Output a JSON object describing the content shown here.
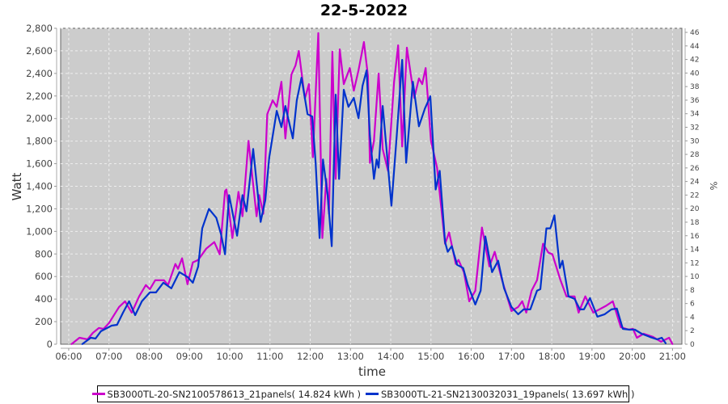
{
  "chart_data": {
    "type": "line",
    "title": "22-5-2022",
    "xlabel": "time",
    "ylabel": "Watt",
    "y2label": "%",
    "xlim": [
      "05:48",
      "21:14"
    ],
    "ylim": [
      0,
      2800
    ],
    "y2lim": [
      0,
      46.6
    ],
    "xticks": [
      "06:00",
      "07:00",
      "08:00",
      "09:00",
      "10:00",
      "11:00",
      "12:00",
      "13:00",
      "14:00",
      "15:00",
      "16:00",
      "17:00",
      "18:00",
      "19:00",
      "20:00",
      "21:00"
    ],
    "yticks": [
      "0",
      "200",
      "400",
      "600",
      "800",
      "1,000",
      "1,200",
      "1,400",
      "1,600",
      "1,800",
      "2,000",
      "2,200",
      "2,400",
      "2,600",
      "2,800"
    ],
    "y2ticks": [
      "0",
      "2",
      "4",
      "6",
      "8",
      "10",
      "12",
      "14",
      "16",
      "18",
      "20",
      "22",
      "24",
      "26",
      "28",
      "30",
      "32",
      "34",
      "36",
      "38",
      "40",
      "42",
      "44",
      "46"
    ],
    "grid": true,
    "legend_placement": "bottom",
    "background": "#cccccc",
    "series": [
      {
        "name": "SB3000TL-20-SN2100578613_21panels( 14.824 kWh )",
        "color": "#cc00cc",
        "points": [
          [
            "06:04",
            0
          ],
          [
            "06:16",
            57
          ],
          [
            "06:28",
            43
          ],
          [
            "06:36",
            100
          ],
          [
            "06:45",
            144
          ],
          [
            "06:52",
            136
          ],
          [
            "07:00",
            187
          ],
          [
            "07:15",
            330
          ],
          [
            "07:24",
            380
          ],
          [
            "07:34",
            280
          ],
          [
            "07:45",
            424
          ],
          [
            "07:55",
            524
          ],
          [
            "08:01",
            488
          ],
          [
            "08:09",
            567
          ],
          [
            "08:22",
            567
          ],
          [
            "08:28",
            524
          ],
          [
            "08:39",
            711
          ],
          [
            "08:43",
            668
          ],
          [
            "08:49",
            761
          ],
          [
            "08:57",
            531
          ],
          [
            "09:05",
            725
          ],
          [
            "09:13",
            747
          ],
          [
            "09:25",
            847
          ],
          [
            "09:37",
            905
          ],
          [
            "09:45",
            797
          ],
          [
            "09:53",
            1357
          ],
          [
            "09:55",
            1371
          ],
          [
            "10:04",
            941
          ],
          [
            "10:13",
            1350
          ],
          [
            "10:19",
            1134
          ],
          [
            "10:28",
            1802
          ],
          [
            "10:40",
            1134
          ],
          [
            "10:44",
            1321
          ],
          [
            "10:50",
            1156
          ],
          [
            "10:56",
            2039
          ],
          [
            "11:04",
            2161
          ],
          [
            "11:10",
            2104
          ],
          [
            "11:17",
            2326
          ],
          [
            "11:23",
            1824
          ],
          [
            "11:32",
            2391
          ],
          [
            "11:38",
            2470
          ],
          [
            "11:43",
            2599
          ],
          [
            "11:52",
            2176
          ],
          [
            "11:58",
            2305
          ],
          [
            "12:04",
            1658
          ],
          [
            "12:12",
            2757
          ],
          [
            "12:18",
            941
          ],
          [
            "12:24",
            1465
          ],
          [
            "12:28",
            1156
          ],
          [
            "12:33",
            2592
          ],
          [
            "12:36",
            1852
          ],
          [
            "12:38",
            1465
          ],
          [
            "12:44",
            2613
          ],
          [
            "12:50",
            2305
          ],
          [
            "12:59",
            2448
          ],
          [
            "13:05",
            2247
          ],
          [
            "13:12",
            2427
          ],
          [
            "13:20",
            2678
          ],
          [
            "13:26",
            2377
          ],
          [
            "13:29",
            1608
          ],
          [
            "13:35",
            1802
          ],
          [
            "13:42",
            2398
          ],
          [
            "13:48",
            1730
          ],
          [
            "13:56",
            1536
          ],
          [
            "14:05",
            2326
          ],
          [
            "14:11",
            2649
          ],
          [
            "14:17",
            1752
          ],
          [
            "14:24",
            2628
          ],
          [
            "14:35",
            2183
          ],
          [
            "14:42",
            2355
          ],
          [
            "14:47",
            2305
          ],
          [
            "14:52",
            2448
          ],
          [
            "15:00",
            1802
          ],
          [
            "15:09",
            1565
          ],
          [
            "15:21",
            890
          ],
          [
            "15:27",
            991
          ],
          [
            "15:37",
            711
          ],
          [
            "15:41",
            747
          ],
          [
            "15:49",
            639
          ],
          [
            "15:57",
            380
          ],
          [
            "16:06",
            474
          ],
          [
            "16:16",
            1034
          ],
          [
            "16:27",
            689
          ],
          [
            "16:35",
            819
          ],
          [
            "16:46",
            567
          ],
          [
            "17:00",
            294
          ],
          [
            "17:10",
            330
          ],
          [
            "17:16",
            380
          ],
          [
            "17:22",
            280
          ],
          [
            "17:30",
            474
          ],
          [
            "17:38",
            567
          ],
          [
            "17:47",
            890
          ],
          [
            "17:55",
            811
          ],
          [
            "18:01",
            797
          ],
          [
            "18:13",
            567
          ],
          [
            "18:22",
            424
          ],
          [
            "18:34",
            424
          ],
          [
            "18:40",
            280
          ],
          [
            "18:50",
            424
          ],
          [
            "19:02",
            280
          ],
          [
            "19:20",
            337
          ],
          [
            "19:31",
            380
          ],
          [
            "19:43",
            151
          ],
          [
            "19:55",
            129
          ],
          [
            "20:01",
            136
          ],
          [
            "20:07",
            57
          ],
          [
            "20:17",
            93
          ],
          [
            "20:31",
            65
          ],
          [
            "20:43",
            22
          ],
          [
            "20:55",
            57
          ],
          [
            "21:00",
            0
          ]
        ]
      },
      {
        "name": "SB3000TL-21-SN2130032031_19panels( 13.697 kWh )",
        "color": "#0033cc",
        "points": [
          [
            "06:20",
            0
          ],
          [
            "06:33",
            57
          ],
          [
            "06:40",
            50
          ],
          [
            "06:48",
            115
          ],
          [
            "07:04",
            165
          ],
          [
            "07:12",
            172
          ],
          [
            "07:21",
            280
          ],
          [
            "07:30",
            380
          ],
          [
            "07:39",
            258
          ],
          [
            "07:49",
            380
          ],
          [
            "08:01",
            459
          ],
          [
            "08:10",
            459
          ],
          [
            "08:21",
            545
          ],
          [
            "08:33",
            495
          ],
          [
            "08:45",
            639
          ],
          [
            "08:57",
            596
          ],
          [
            "09:05",
            545
          ],
          [
            "09:13",
            689
          ],
          [
            "09:19",
            1027
          ],
          [
            "09:29",
            1199
          ],
          [
            "09:40",
            1120
          ],
          [
            "09:47",
            976
          ],
          [
            "09:53",
            797
          ],
          [
            "09:59",
            1321
          ],
          [
            "10:11",
            962
          ],
          [
            "10:19",
            1321
          ],
          [
            "10:25",
            1178
          ],
          [
            "10:35",
            1730
          ],
          [
            "10:46",
            1084
          ],
          [
            "10:53",
            1278
          ],
          [
            "10:59",
            1658
          ],
          [
            "11:10",
            2068
          ],
          [
            "11:17",
            1924
          ],
          [
            "11:23",
            2111
          ],
          [
            "11:34",
            1824
          ],
          [
            "11:40",
            2161
          ],
          [
            "11:47",
            2362
          ],
          [
            "11:56",
            2039
          ],
          [
            "12:03",
            2018
          ],
          [
            "12:08",
            1608
          ],
          [
            "12:14",
            941
          ],
          [
            "12:19",
            1637
          ],
          [
            "12:26",
            1321
          ],
          [
            "12:32",
            869
          ],
          [
            "12:38",
            2211
          ],
          [
            "12:43",
            1465
          ],
          [
            "12:50",
            2255
          ],
          [
            "12:57",
            2104
          ],
          [
            "13:05",
            2183
          ],
          [
            "13:12",
            2003
          ],
          [
            "13:18",
            2291
          ],
          [
            "13:24",
            2427
          ],
          [
            "13:29",
            1852
          ],
          [
            "13:35",
            1465
          ],
          [
            "13:39",
            1637
          ],
          [
            "13:42",
            1565
          ],
          [
            "13:48",
            2111
          ],
          [
            "13:54",
            1709
          ],
          [
            "14:01",
            1228
          ],
          [
            "14:09",
            1852
          ],
          [
            "14:17",
            2520
          ],
          [
            "14:23",
            1608
          ],
          [
            "14:33",
            2326
          ],
          [
            "14:42",
            1931
          ],
          [
            "14:51",
            2089
          ],
          [
            "14:59",
            2197
          ],
          [
            "15:07",
            1371
          ],
          [
            "15:13",
            1536
          ],
          [
            "15:21",
            905
          ],
          [
            "15:25",
            819
          ],
          [
            "15:31",
            869
          ],
          [
            "15:39",
            703
          ],
          [
            "15:48",
            675
          ],
          [
            "15:55",
            524
          ],
          [
            "16:06",
            352
          ],
          [
            "16:14",
            474
          ],
          [
            "16:21",
            955
          ],
          [
            "16:31",
            639
          ],
          [
            "16:40",
            740
          ],
          [
            "16:49",
            495
          ],
          [
            "17:00",
            330
          ],
          [
            "17:10",
            266
          ],
          [
            "17:18",
            309
          ],
          [
            "17:28",
            309
          ],
          [
            "17:38",
            474
          ],
          [
            "17:43",
            488
          ],
          [
            "17:52",
            1027
          ],
          [
            "17:58",
            1027
          ],
          [
            "18:04",
            1142
          ],
          [
            "18:12",
            675
          ],
          [
            "18:16",
            740
          ],
          [
            "18:25",
            424
          ],
          [
            "18:34",
            402
          ],
          [
            "18:42",
            309
          ],
          [
            "18:48",
            309
          ],
          [
            "18:57",
            409
          ],
          [
            "19:08",
            244
          ],
          [
            "19:19",
            266
          ],
          [
            "19:29",
            309
          ],
          [
            "19:37",
            316
          ],
          [
            "19:46",
            136
          ],
          [
            "19:56",
            129
          ],
          [
            "20:04",
            129
          ],
          [
            "20:14",
            93
          ],
          [
            "20:26",
            65
          ],
          [
            "20:37",
            43
          ],
          [
            "20:44",
            57
          ],
          [
            "20:50",
            7
          ]
        ]
      }
    ]
  }
}
